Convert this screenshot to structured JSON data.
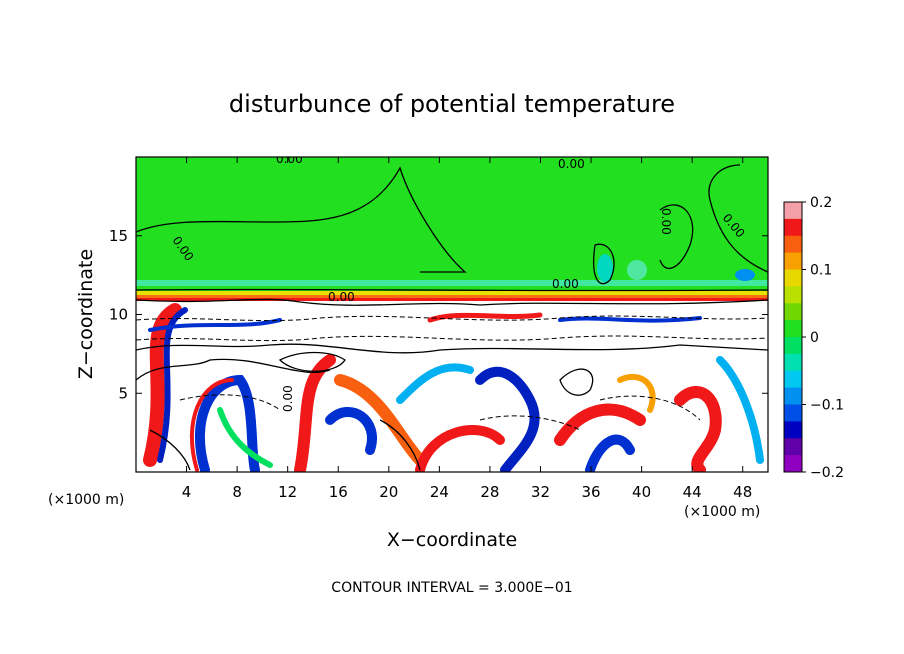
{
  "chart_data": {
    "type": "heatmap",
    "title": "disturbunce of potential temperature",
    "xlabel": "X−coordinate",
    "ylabel": "Z−coordinate",
    "x_unit_left": "(×1000 m)",
    "x_unit_right": "(×1000 m)",
    "footer": "CONTOUR INTERVAL = 3.000E−01",
    "xlim": [
      0,
      50
    ],
    "ylim": [
      0,
      20
    ],
    "x_ticks": [
      {
        "value": 4,
        "label": "4"
      },
      {
        "value": 8,
        "label": "8"
      },
      {
        "value": 12,
        "label": "12"
      },
      {
        "value": 16,
        "label": "16"
      },
      {
        "value": 20,
        "label": "20"
      },
      {
        "value": 24,
        "label": "24"
      },
      {
        "value": 28,
        "label": "28"
      },
      {
        "value": 32,
        "label": "32"
      },
      {
        "value": 36,
        "label": "36"
      },
      {
        "value": 40,
        "label": "40"
      },
      {
        "value": 44,
        "label": "44"
      },
      {
        "value": 48,
        "label": "48"
      }
    ],
    "y_ticks": [
      {
        "value": 5,
        "label": "5"
      },
      {
        "value": 10,
        "label": "10"
      },
      {
        "value": 15,
        "label": "15"
      }
    ],
    "colorbar": {
      "range": [
        -0.2,
        0.2
      ],
      "ticks": [
        {
          "value": 0.2,
          "label": "0.2"
        },
        {
          "value": 0.1,
          "label": "0.1"
        },
        {
          "value": 0,
          "label": "0"
        },
        {
          "value": -0.1,
          "label": "−0.1"
        },
        {
          "value": -0.2,
          "label": "−0.2"
        }
      ],
      "colors": [
        "#f4a0a8",
        "#f01818",
        "#f86010",
        "#f8a000",
        "#e8d800",
        "#b8e000",
        "#70d800",
        "#20e020",
        "#00e060",
        "#00e0b0",
        "#00c8f0",
        "#0090f0",
        "#0050e8",
        "#0000c0",
        "#6000a8",
        "#9000c0"
      ]
    },
    "contour_labels": [
      {
        "x": 12.5,
        "y": 19.85,
        "text": "0.00"
      },
      {
        "x": 34.0,
        "y": 19.7,
        "text": "0.00"
      },
      {
        "x": 16.0,
        "y": 11.0,
        "text": "0.00"
      },
      {
        "x": 34.0,
        "y": 12.2,
        "text": "0.00"
      },
      {
        "x": 4.0,
        "y": 14.0,
        "text": "0.00"
      },
      {
        "x": 43.0,
        "y": 16.0,
        "text": "0.00"
      },
      {
        "x": 47.0,
        "y": 15.0,
        "text": "0.00"
      },
      {
        "x": 13.0,
        "y": 4.5,
        "text": "0.00"
      }
    ],
    "regions": {
      "upper_background": 0,
      "mixed_layer_top": 12,
      "lower_background": "saturated (above 0.2 and below -0.2)"
    }
  }
}
